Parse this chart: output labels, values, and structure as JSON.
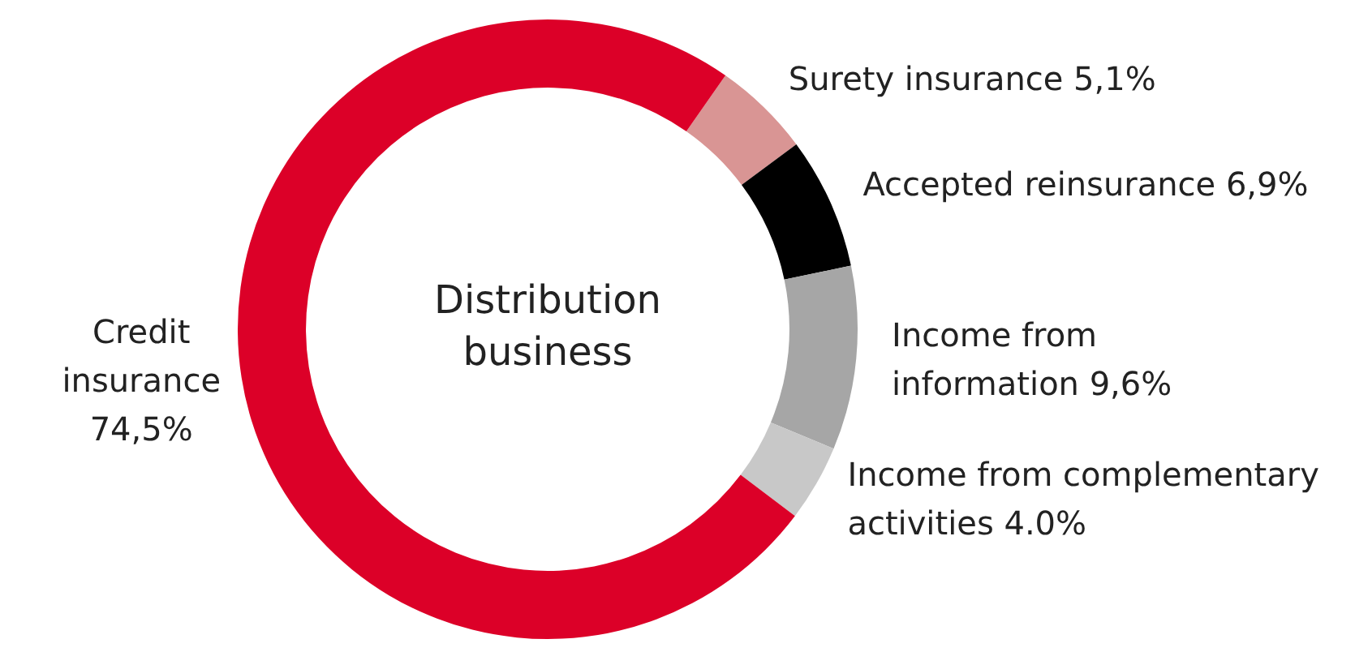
{
  "chart_data": {
    "type": "donut",
    "title": "Distribution business",
    "categories": [
      "Surety insurance",
      "Accepted reinsurance",
      "Income from information",
      "Income from complementary activities",
      "Credit insurance"
    ],
    "values": [
      5.1,
      6.9,
      9.6,
      4.0,
      74.5
    ],
    "value_labels": [
      "5,1%",
      "6,9%",
      "9,6%",
      "4.0%",
      "74,5%"
    ],
    "colors": [
      "#d99594",
      "#000000",
      "#a6a6a6",
      "#c8c8c8",
      "#dc0028"
    ],
    "legend": false
  }
}
